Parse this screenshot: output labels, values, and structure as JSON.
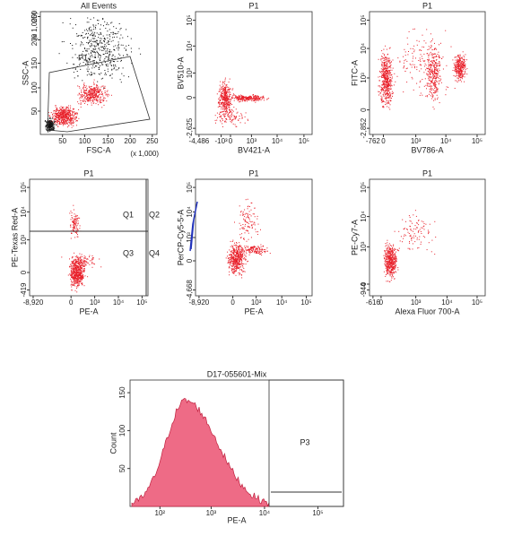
{
  "panels": [
    {
      "title": "All Events",
      "x_label": "FSC-A",
      "y_label": "SSC-A",
      "x_ticks": [
        "50",
        "100",
        "150",
        "200",
        "250"
      ],
      "y_ticks": [
        "50",
        "100",
        "150",
        "200",
        "250"
      ],
      "x_scale": "(x 1,000)",
      "y_scale": "(x 1,000)",
      "gate": "P1"
    },
    {
      "title": "P1",
      "x_label": "BV421-A",
      "y_label": "BV510-A",
      "x_ticks": [
        "-4,486",
        "-10³",
        "0",
        "10³",
        "10⁴",
        "10⁵"
      ],
      "y_ticks": [
        "-2,625",
        "0",
        "10³",
        "10⁴",
        "10⁵"
      ]
    },
    {
      "title": "P1",
      "x_label": "BV786-A",
      "y_label": "FITC-A",
      "x_ticks": [
        "-762",
        "0",
        "10³",
        "10⁴",
        "10⁵"
      ],
      "y_ticks": [
        "-2,852",
        "0",
        "10³",
        "10⁴",
        "10⁵"
      ]
    },
    {
      "title": "P1",
      "x_label": "PE-A",
      "y_label": "PE-Texas Red-A",
      "x_ticks": [
        "-8,920",
        "0",
        "10³",
        "10⁴",
        "10⁵"
      ],
      "y_ticks": [
        "-419",
        "0",
        "10³",
        "10⁴",
        "10⁵"
      ],
      "quadrants": [
        "Q1",
        "Q2",
        "Q3",
        "Q4"
      ]
    },
    {
      "title": "P1",
      "x_label": "PE-A",
      "y_label": "PerCP-Cy5-5-A",
      "x_ticks": [
        "-8,920",
        "0",
        "10³",
        "10⁴",
        "10⁵"
      ],
      "y_ticks": [
        "-4,668",
        "0",
        "10³",
        "10⁴",
        "10⁵"
      ]
    },
    {
      "title": "P1",
      "x_label": "Alexa Fluor 700-A",
      "y_label": "PE-Cy7-A",
      "x_ticks": [
        "-616",
        "0",
        "10³",
        "10⁴",
        "10⁵"
      ],
      "y_ticks": [
        "-944",
        "0",
        "10³",
        "10⁴",
        "10⁵"
      ]
    }
  ],
  "histogram": {
    "title": "D17-055601-Mix",
    "x_label": "PE-A",
    "y_label": "Count",
    "x_ticks": [
      "10²",
      "10³",
      "10⁴",
      "10⁵"
    ],
    "y_ticks": [
      "50",
      "100",
      "150"
    ],
    "gate": "P3"
  }
}
